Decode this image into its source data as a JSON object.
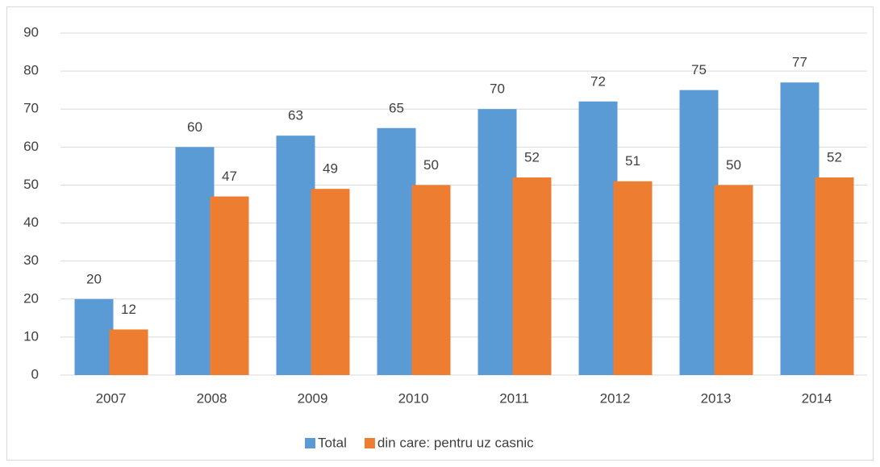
{
  "chart_data": {
    "type": "bar",
    "categories": [
      "2007",
      "2008",
      "2009",
      "2010",
      "2011",
      "2012",
      "2013",
      "2014"
    ],
    "series": [
      {
        "name": "Total",
        "color": "#5b9bd5",
        "values": [
          20,
          60,
          63,
          65,
          70,
          72,
          75,
          77
        ]
      },
      {
        "name": "din care: pentru uz casnic",
        "color": "#ed7d31",
        "values": [
          12,
          47,
          49,
          50,
          52,
          51,
          50,
          52
        ]
      }
    ],
    "ylim": [
      0,
      90
    ],
    "yticks": [
      0,
      10,
      20,
      30,
      40,
      50,
      60,
      70,
      80,
      90
    ],
    "grid": true,
    "legend": "bottom"
  }
}
